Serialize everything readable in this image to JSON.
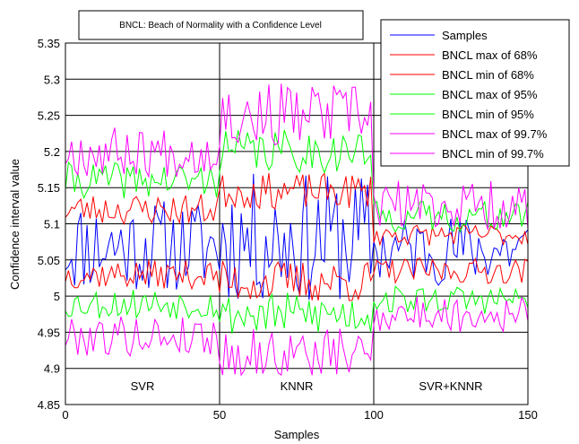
{
  "chart_data": {
    "type": "line",
    "title": "BNCL: Beach of Normality with a Confidence Level",
    "xlabel": "Samples",
    "ylabel": "Confidence interval value",
    "xlim": [
      0,
      150
    ],
    "ylim": [
      4.85,
      5.35
    ],
    "xticks": [
      0,
      50,
      100,
      150
    ],
    "yticks": [
      4.85,
      4.9,
      4.95,
      5,
      5.05,
      5.1,
      5.15,
      5.2,
      5.25,
      5.3,
      5.35
    ],
    "ytick_labels": [
      "4.85",
      "4.9",
      "4.95",
      "5",
      "5.05",
      "5.1",
      "5.15",
      "5.2",
      "5.25",
      "5.3",
      "5.35"
    ],
    "grid": "horizontal lines at each y tick; vertical lines at region boundaries",
    "legend_position": "top-right",
    "region_dividers": [
      50,
      100
    ],
    "regions": [
      {
        "label": "SVR",
        "x_center": 25
      },
      {
        "label": "KNNR",
        "x_center": 75
      },
      {
        "label": "SVR+KNNR",
        "x_center": 125
      }
    ],
    "series": [
      {
        "name": "Samples",
        "color": "#0000ff",
        "center": [
          5.07,
          5.08,
          5.065
        ],
        "amp": [
          0.065,
          0.09,
          0.05
        ],
        "seed": 11
      },
      {
        "name": "BNCL max of 68%",
        "color": "#ff0000",
        "center": [
          5.12,
          5.145,
          5.085
        ],
        "amp": [
          0.022,
          0.025,
          0.015
        ],
        "seed": 23
      },
      {
        "name": "BNCL min of 68%",
        "color": "#ff0000",
        "center": [
          5.03,
          5.02,
          5.035
        ],
        "amp": [
          0.02,
          0.03,
          0.018
        ],
        "seed": 37
      },
      {
        "name": "BNCL max of 95%",
        "color": "#00ff00",
        "center": [
          5.16,
          5.2,
          5.11
        ],
        "amp": [
          0.025,
          0.03,
          0.022
        ],
        "seed": 41
      },
      {
        "name": "BNCL min of 95%",
        "color": "#00ff00",
        "center": [
          4.99,
          4.975,
          4.995
        ],
        "amp": [
          0.022,
          0.03,
          0.02
        ],
        "seed": 53
      },
      {
        "name": "BNCL max of 99.7%",
        "color": "#ff00ff",
        "center": [
          5.2,
          5.25,
          5.125
        ],
        "amp": [
          0.035,
          0.045,
          0.035
        ],
        "seed": 67
      },
      {
        "name": "BNCL min of 99.7%",
        "color": "#ff00ff",
        "center": [
          4.945,
          4.92,
          4.975
        ],
        "amp": [
          0.028,
          0.035,
          0.025
        ],
        "seed": 79
      }
    ]
  }
}
